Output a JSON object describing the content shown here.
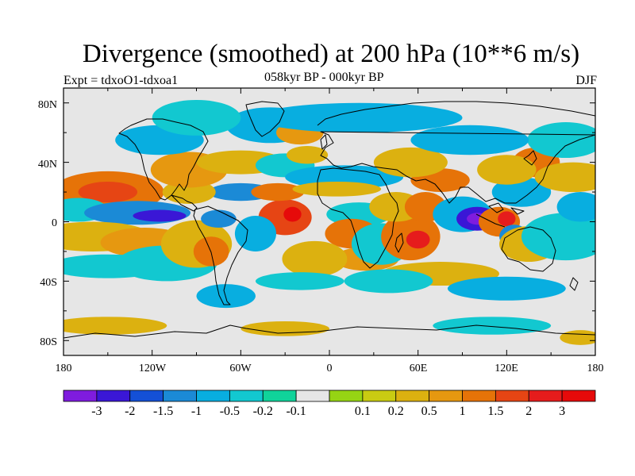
{
  "title": "Divergence (smoothed) at 200 hPa (10**6 m/s)",
  "subtitle": "058kyr BP - 000kyr BP",
  "left_label": "Expt = tdxoO1-tdxoa1",
  "right_label": "DJF",
  "lat_labels": [
    "80N",
    "40N",
    "0",
    "40S",
    "80S"
  ],
  "lon_labels": [
    "180",
    "120W",
    "60W",
    "0",
    "60E",
    "120E",
    "180"
  ],
  "colors": {
    "background": "#e6e6e6",
    "coast": "#000000"
  },
  "colorbar": {
    "colors": [
      "#7f1cde",
      "#3a17d6",
      "#1450d6",
      "#1b8ad6",
      "#08aee0",
      "#12c8d0",
      "#10d39a",
      "#e6e6e6",
      "#96d414",
      "#c9cb12",
      "#dcb110",
      "#e69810",
      "#e67308",
      "#e64514",
      "#e61c1c",
      "#e60a0a"
    ],
    "labels": [
      "-3",
      "-2",
      "-1.5",
      "-1",
      "-0.5",
      "-0.2",
      "-0.1",
      "0.1",
      "0.2",
      "0.5",
      "1",
      "1.5",
      "2",
      "3"
    ]
  },
  "map_data": {
    "projection": "cylindrical equidistant",
    "lon_range": [
      -180,
      180
    ],
    "lat_range": [
      -90,
      90
    ],
    "features": [
      {
        "lon": -150,
        "lat": 20,
        "w": 38,
        "h": 14,
        "c": 12
      },
      {
        "lon": -150,
        "lat": 20,
        "w": 20,
        "h": 7,
        "c": 13
      },
      {
        "lon": -170,
        "lat": 8,
        "w": 20,
        "h": 8,
        "c": 5
      },
      {
        "lon": -130,
        "lat": 6,
        "w": 36,
        "h": 8,
        "c": 3
      },
      {
        "lon": -115,
        "lat": 4,
        "w": 18,
        "h": 4,
        "c": 1
      },
      {
        "lon": -160,
        "lat": -10,
        "w": 40,
        "h": 10,
        "c": 10
      },
      {
        "lon": -125,
        "lat": -14,
        "w": 30,
        "h": 10,
        "c": 11
      },
      {
        "lon": -150,
        "lat": -30,
        "w": 40,
        "h": 8,
        "c": 5
      },
      {
        "lon": -110,
        "lat": -28,
        "w": 34,
        "h": 12,
        "c": 5
      },
      {
        "lon": -90,
        "lat": -15,
        "w": 24,
        "h": 16,
        "c": 10
      },
      {
        "lon": -80,
        "lat": -20,
        "w": 12,
        "h": 10,
        "c": 12
      },
      {
        "lon": -30,
        "lat": 3,
        "w": 18,
        "h": 12,
        "c": 13
      },
      {
        "lon": -25,
        "lat": 5,
        "w": 6,
        "h": 5,
        "c": 15
      },
      {
        "lon": -50,
        "lat": -8,
        "w": 14,
        "h": 12,
        "c": 4
      },
      {
        "lon": -75,
        "lat": 2,
        "w": 12,
        "h": 6,
        "c": 3
      },
      {
        "lon": -60,
        "lat": 20,
        "w": 22,
        "h": 6,
        "c": 3
      },
      {
        "lon": -35,
        "lat": 20,
        "w": 18,
        "h": 6,
        "c": 12
      },
      {
        "lon": -95,
        "lat": 20,
        "w": 18,
        "h": 8,
        "c": 10
      },
      {
        "lon": -95,
        "lat": 35,
        "w": 26,
        "h": 12,
        "c": 11
      },
      {
        "lon": -60,
        "lat": 40,
        "w": 30,
        "h": 8,
        "c": 10
      },
      {
        "lon": -30,
        "lat": 38,
        "w": 20,
        "h": 8,
        "c": 5
      },
      {
        "lon": -115,
        "lat": 55,
        "w": 30,
        "h": 10,
        "c": 4
      },
      {
        "lon": -40,
        "lat": 65,
        "w": 30,
        "h": 12,
        "c": 4
      },
      {
        "lon": -20,
        "lat": 60,
        "w": 16,
        "h": 8,
        "c": 11
      },
      {
        "lon": -15,
        "lat": 45,
        "w": 14,
        "h": 6,
        "c": 10
      },
      {
        "lon": -90,
        "lat": 70,
        "w": 30,
        "h": 12,
        "c": 5
      },
      {
        "lon": 20,
        "lat": 70,
        "w": 70,
        "h": 10,
        "c": 4
      },
      {
        "lon": 10,
        "lat": 30,
        "w": 40,
        "h": 8,
        "c": 4
      },
      {
        "lon": 5,
        "lat": 22,
        "w": 30,
        "h": 5,
        "c": 10
      },
      {
        "lon": 20,
        "lat": 5,
        "w": 22,
        "h": 8,
        "c": 5
      },
      {
        "lon": 15,
        "lat": -8,
        "w": 18,
        "h": 10,
        "c": 12
      },
      {
        "lon": 25,
        "lat": -25,
        "w": 22,
        "h": 8,
        "c": 11
      },
      {
        "lon": 35,
        "lat": -15,
        "w": 20,
        "h": 14,
        "c": 5
      },
      {
        "lon": 55,
        "lat": -10,
        "w": 20,
        "h": 16,
        "c": 12
      },
      {
        "lon": 60,
        "lat": -12,
        "w": 8,
        "h": 6,
        "c": 14
      },
      {
        "lon": 45,
        "lat": 10,
        "w": 18,
        "h": 10,
        "c": 10
      },
      {
        "lon": 65,
        "lat": 10,
        "w": 14,
        "h": 10,
        "c": 12
      },
      {
        "lon": 75,
        "lat": 28,
        "w": 20,
        "h": 8,
        "c": 12
      },
      {
        "lon": 55,
        "lat": 40,
        "w": 25,
        "h": 10,
        "c": 10
      },
      {
        "lon": 90,
        "lat": 5,
        "w": 20,
        "h": 12,
        "c": 4
      },
      {
        "lon": 100,
        "lat": 2,
        "w": 14,
        "h": 8,
        "c": 1
      },
      {
        "lon": 100,
        "lat": 2,
        "w": 7,
        "h": 4,
        "c": 0
      },
      {
        "lon": 115,
        "lat": 0,
        "w": 14,
        "h": 10,
        "c": 12
      },
      {
        "lon": 120,
        "lat": 2,
        "w": 6,
        "h": 5,
        "c": 14
      },
      {
        "lon": 125,
        "lat": -10,
        "w": 10,
        "h": 8,
        "c": 3
      },
      {
        "lon": 130,
        "lat": 20,
        "w": 20,
        "h": 10,
        "c": 4
      },
      {
        "lon": 140,
        "lat": 40,
        "w": 16,
        "h": 10,
        "c": 12
      },
      {
        "lon": 120,
        "lat": 35,
        "w": 20,
        "h": 10,
        "c": 10
      },
      {
        "lon": 135,
        "lat": -15,
        "w": 20,
        "h": 12,
        "c": 10
      },
      {
        "lon": 160,
        "lat": -10,
        "w": 30,
        "h": 16,
        "c": 5
      },
      {
        "lon": 170,
        "lat": 10,
        "w": 16,
        "h": 10,
        "c": 4
      },
      {
        "lon": 165,
        "lat": 30,
        "w": 26,
        "h": 10,
        "c": 10
      },
      {
        "lon": 160,
        "lat": 55,
        "w": 26,
        "h": 12,
        "c": 5
      },
      {
        "lon": 95,
        "lat": 55,
        "w": 40,
        "h": 10,
        "c": 4
      },
      {
        "lon": 75,
        "lat": -35,
        "w": 40,
        "h": 8,
        "c": 10
      },
      {
        "lon": 40,
        "lat": -40,
        "w": 30,
        "h": 8,
        "c": 5
      },
      {
        "lon": -10,
        "lat": -25,
        "w": 22,
        "h": 12,
        "c": 10
      },
      {
        "lon": -20,
        "lat": -40,
        "w": 30,
        "h": 6,
        "c": 5
      },
      {
        "lon": -70,
        "lat": -50,
        "w": 20,
        "h": 8,
        "c": 4
      },
      {
        "lon": 120,
        "lat": -45,
        "w": 40,
        "h": 8,
        "c": 4
      },
      {
        "lon": -150,
        "lat": -70,
        "w": 40,
        "h": 6,
        "c": 10
      },
      {
        "lon": 110,
        "lat": -70,
        "w": 40,
        "h": 6,
        "c": 5
      },
      {
        "lon": -30,
        "lat": -72,
        "w": 30,
        "h": 5,
        "c": 10
      },
      {
        "lon": 170,
        "lat": -78,
        "w": 14,
        "h": 5,
        "c": 10
      }
    ]
  }
}
